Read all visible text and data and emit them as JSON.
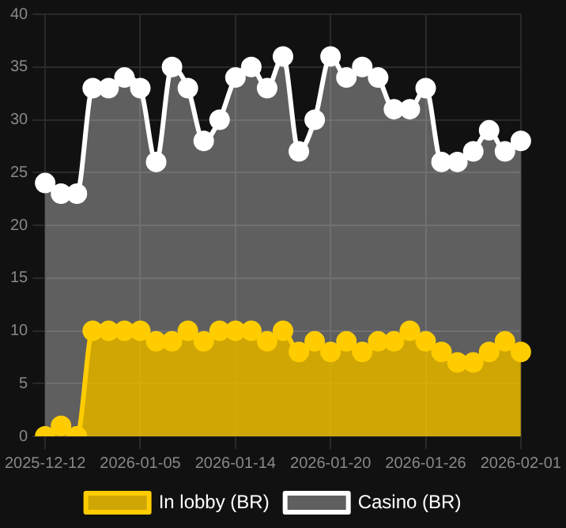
{
  "chart_data": {
    "type": "area",
    "categories": [
      "2025-12-12",
      null,
      null,
      null,
      null,
      null,
      "2026-01-05",
      null,
      null,
      null,
      null,
      null,
      "2026-01-14",
      null,
      null,
      null,
      null,
      null,
      "2026-01-20",
      null,
      null,
      null,
      null,
      null,
      "2026-01-26",
      null,
      null,
      null,
      null,
      null,
      "2026-02-01"
    ],
    "series": [
      {
        "name": "In lobby (BR)",
        "color": "#ffcc00",
        "values": [
          0,
          1,
          0,
          10,
          10,
          10,
          10,
          9,
          9,
          10,
          9,
          10,
          10,
          10,
          9,
          10,
          8,
          9,
          8,
          9,
          8,
          9,
          9,
          10,
          9,
          8,
          7,
          7,
          8,
          9,
          8
        ]
      },
      {
        "name": "Casino (BR)",
        "color": "#ffffff",
        "values": [
          24,
          23,
          23,
          33,
          33,
          34,
          33,
          26,
          35,
          33,
          28,
          30,
          34,
          35,
          33,
          36,
          27,
          30,
          36,
          34,
          35,
          34,
          31,
          31,
          33,
          26,
          26,
          27,
          29,
          27,
          28
        ]
      }
    ],
    "ylim": [
      0,
      40
    ],
    "yticks": [
      0,
      5,
      10,
      15,
      20,
      25,
      30,
      35,
      40
    ],
    "grid": true,
    "legend": "bottom",
    "marker": "circle"
  }
}
